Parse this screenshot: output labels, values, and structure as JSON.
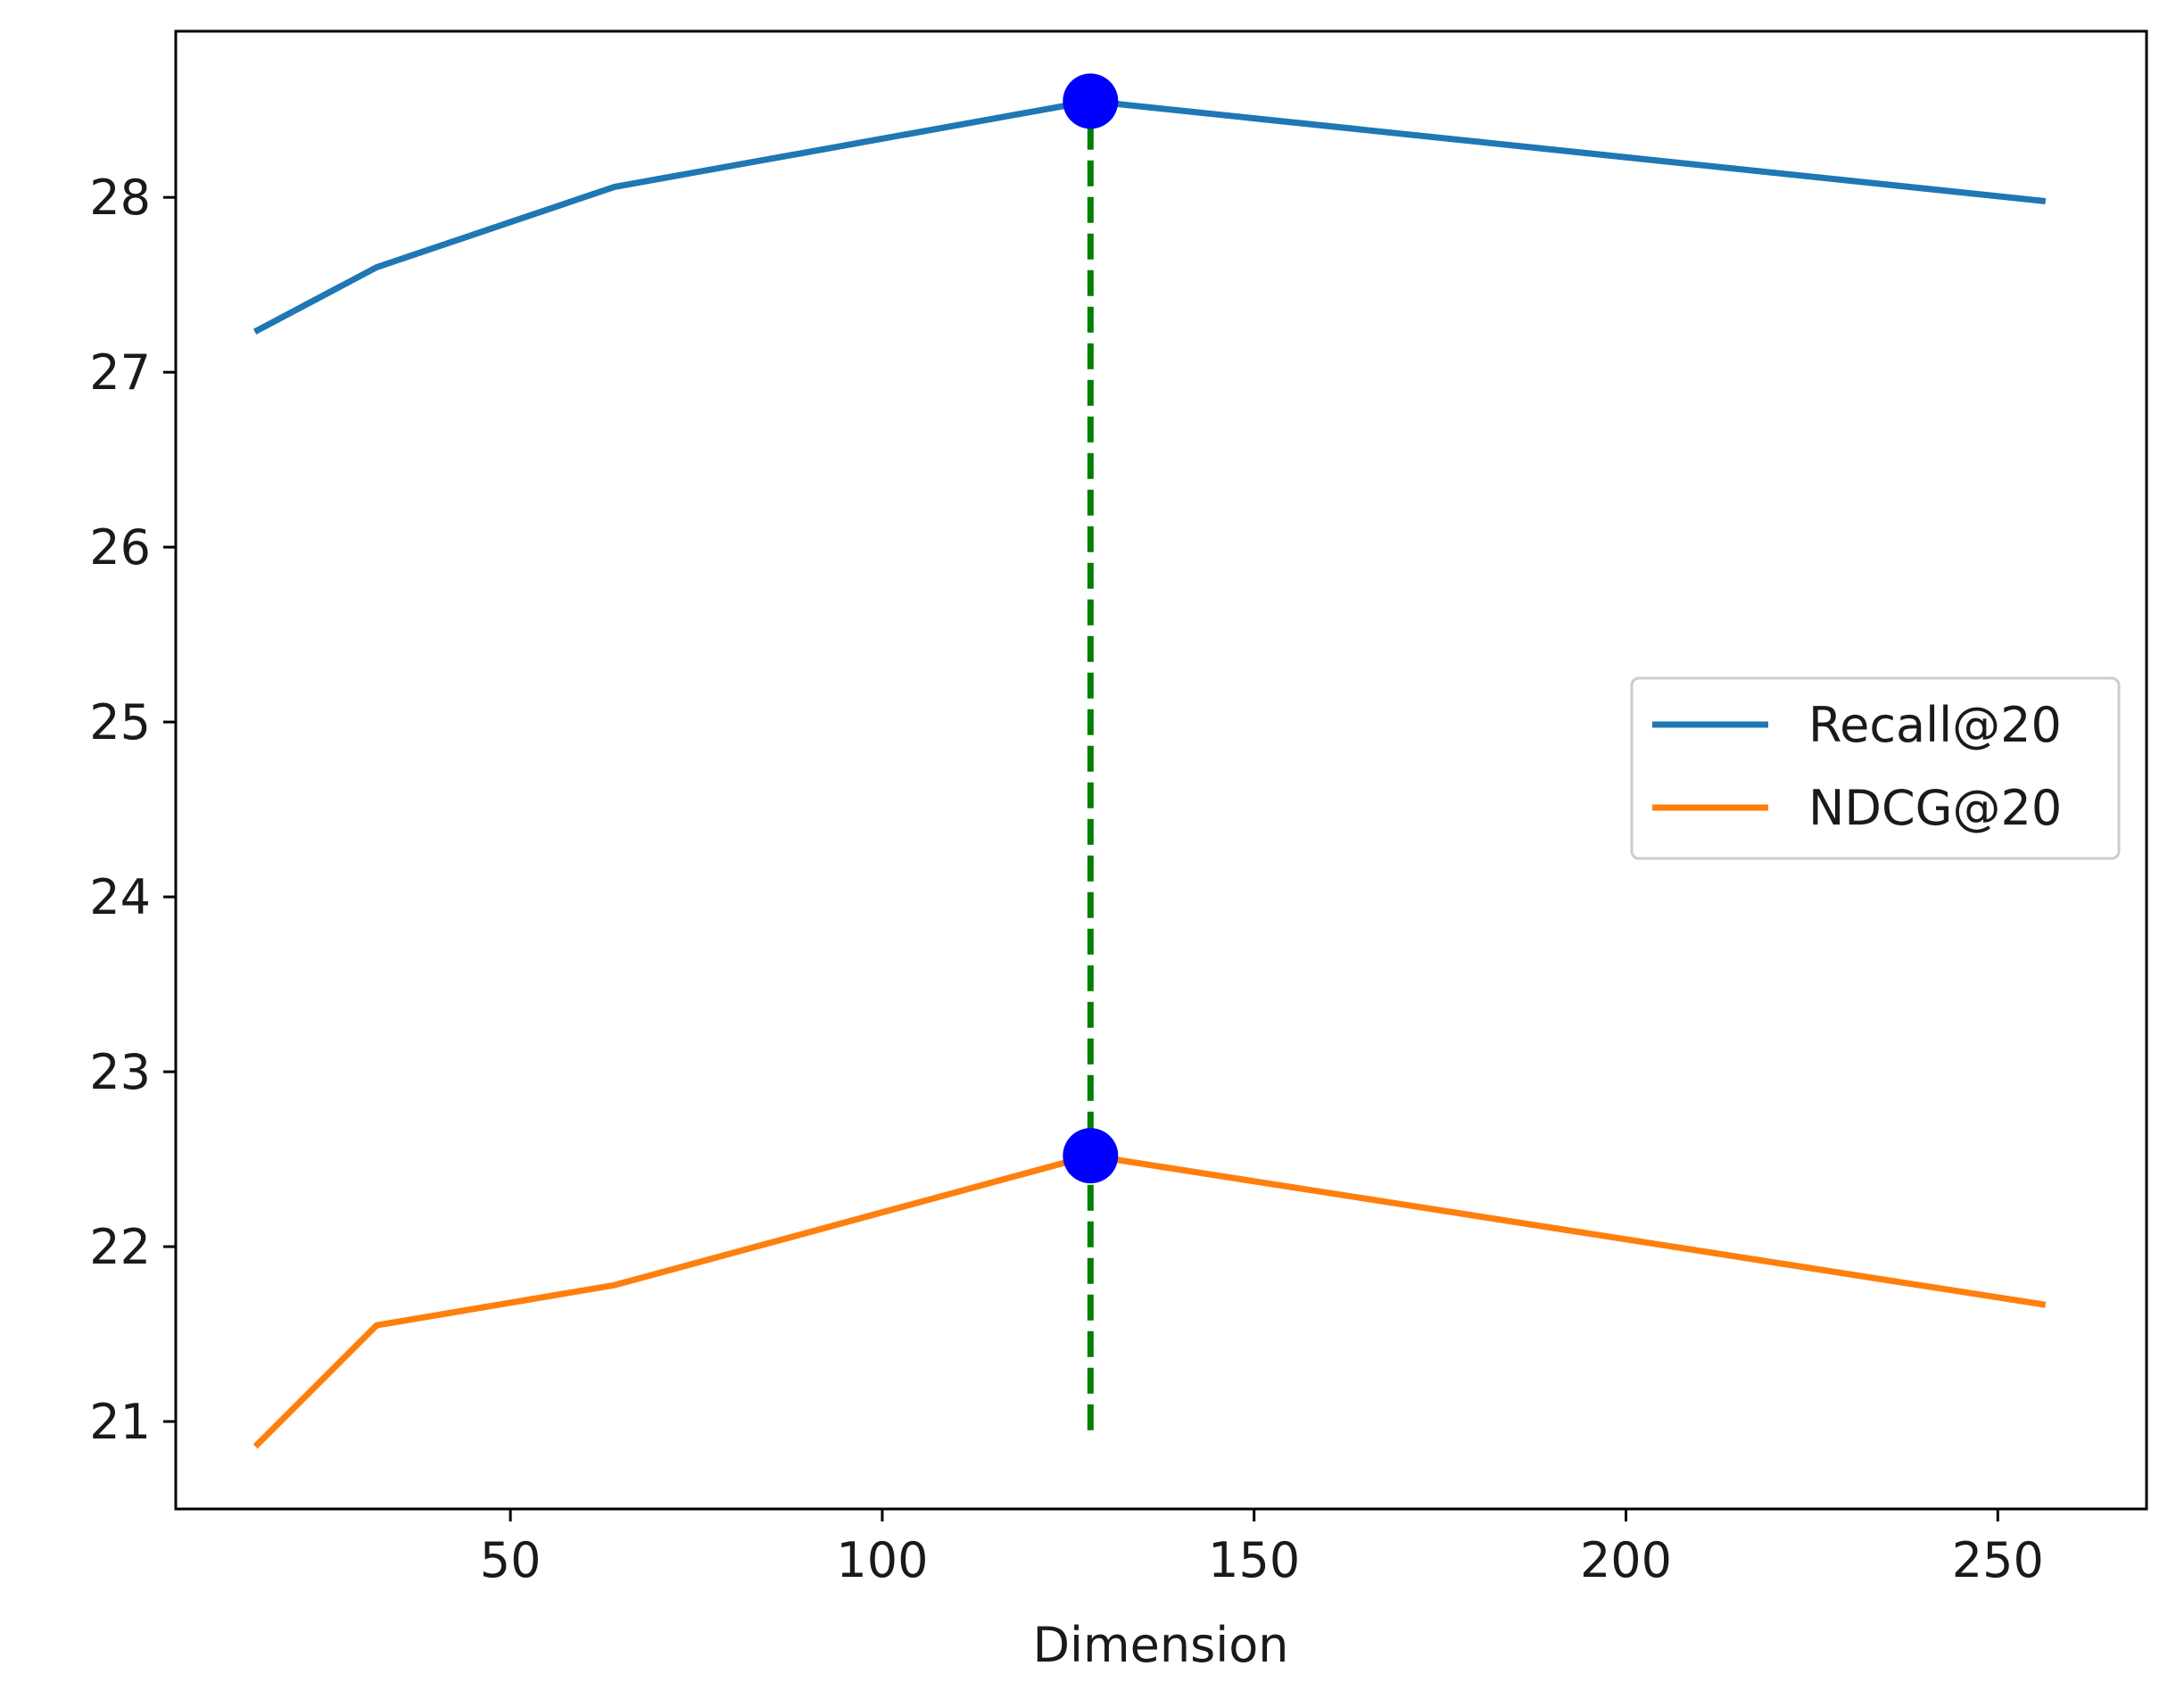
{
  "chart_data": {
    "type": "line",
    "title": "",
    "xlabel": "Dimension",
    "ylabel": "",
    "xlim": [
      5,
      270
    ],
    "ylim": [
      20.5,
      28.95
    ],
    "xticks": [
      50,
      100,
      150,
      200,
      250
    ],
    "yticks": [
      21,
      22,
      23,
      24,
      25,
      26,
      27,
      28
    ],
    "grid": false,
    "legend_position": "center-right",
    "x": [
      16,
      32,
      64,
      128,
      256
    ],
    "series": [
      {
        "name": "Recall@20",
        "color": "#1f77b4",
        "values": [
          27.24,
          27.6,
          28.06,
          28.55,
          27.98
        ]
      },
      {
        "name": "NDCG@20",
        "color": "#ff7f0e",
        "values": [
          20.87,
          21.55,
          21.78,
          22.52,
          21.67
        ]
      }
    ],
    "highlight_points": [
      {
        "x": 128,
        "y": 28.55,
        "color": "#0000ff"
      },
      {
        "x": 128,
        "y": 22.52,
        "color": "#0000ff"
      }
    ],
    "reference_line": {
      "x": 128,
      "y_from": 20.95,
      "y_to": 28.55,
      "color": "#008000",
      "style": "dashed"
    }
  }
}
